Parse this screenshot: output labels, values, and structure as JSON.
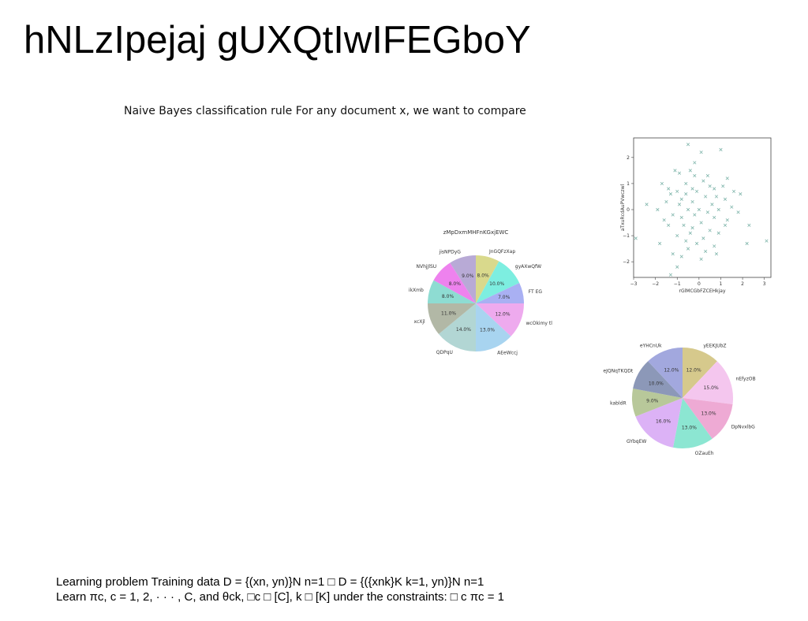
{
  "slide": {
    "title": "hNLzIpejaj gUXQtIwIFEGboY",
    "subtitle": "Naive Bayes classification rule For any document x, we want to compare",
    "bottom_lines": [
      "Learning problem Training data D = {(xn, yn)}N n=1 □ D = {({xnk}K k=1, yn)}N n=1",
      "Learn πc, c = 1, 2, · · · , C, and θck, □c □ [C], k □ [K] under the constraints: □ c πc = 1"
    ]
  },
  "chart_data": [
    {
      "type": "pie",
      "title": "zMpDxmMHFnKGxjEWC",
      "labels": [
        "JnGQFzXap",
        "gyAXwQfW",
        "FT EG",
        "wcOkimy tl",
        "AEeWccj",
        "QDPqU",
        "xcXjl",
        "ikXmb",
        "NVhjJlSU",
        "jisNPDyG"
      ],
      "values": [
        8.0,
        10.0,
        7.0,
        12.0,
        13.0,
        14.0,
        11.0,
        8.0,
        8.0,
        9.0
      ],
      "colors": [
        "#d9d98c",
        "#7deee0",
        "#a9b0f3",
        "#eeaaee",
        "#a8d4f0",
        "#b2d6d4",
        "#b2b8a6",
        "#8edcd2",
        "#ee82ee",
        "#b8aad6"
      ]
    },
    {
      "type": "scatter",
      "xlabel": "rGlMCGbFZCEHkjay",
      "ylabel": "aTxuRcdAuPVwczwl",
      "xlim": [
        -3,
        3.3
      ],
      "ylim": [
        -2.6,
        2.75
      ],
      "xticks": [
        -3,
        -2,
        -1,
        0,
        1,
        2,
        3
      ],
      "yticks": [
        -2,
        -1,
        0,
        1,
        2
      ],
      "marker": "x",
      "color": "#7fb5ab",
      "points": [
        [
          -0.5,
          2.5
        ],
        [
          1.0,
          2.3
        ],
        [
          0.1,
          2.2
        ],
        [
          -0.2,
          1.8
        ],
        [
          -1.1,
          1.5
        ],
        [
          -0.4,
          1.5
        ],
        [
          -0.9,
          1.4
        ],
        [
          0.4,
          1.3
        ],
        [
          -0.2,
          1.3
        ],
        [
          1.3,
          1.2
        ],
        [
          0.2,
          1.1
        ],
        [
          -1.7,
          1.0
        ],
        [
          -0.6,
          1.0
        ],
        [
          0.5,
          0.9
        ],
        [
          -1.4,
          0.8
        ],
        [
          -0.3,
          0.8
        ],
        [
          0.7,
          0.8
        ],
        [
          1.1,
          0.9
        ],
        [
          -1.0,
          0.7
        ],
        [
          -0.1,
          0.7
        ],
        [
          1.6,
          0.7
        ],
        [
          1.9,
          0.6
        ],
        [
          -1.3,
          0.6
        ],
        [
          -0.6,
          0.6
        ],
        [
          0.3,
          0.5
        ],
        [
          0.8,
          0.5
        ],
        [
          -0.8,
          0.4
        ],
        [
          1.2,
          0.4
        ],
        [
          -1.5,
          0.3
        ],
        [
          -0.3,
          0.3
        ],
        [
          -2.4,
          0.2
        ],
        [
          -0.9,
          0.2
        ],
        [
          0.6,
          0.2
        ],
        [
          1.5,
          0.1
        ],
        [
          -1.9,
          0.0
        ],
        [
          -0.5,
          0.0
        ],
        [
          0.0,
          0.0
        ],
        [
          0.9,
          0.0
        ],
        [
          -1.2,
          -0.2
        ],
        [
          0.4,
          -0.1
        ],
        [
          1.8,
          -0.1
        ],
        [
          -0.8,
          -0.3
        ],
        [
          -0.2,
          -0.2
        ],
        [
          0.7,
          -0.3
        ],
        [
          -1.6,
          -0.4
        ],
        [
          1.3,
          -0.4
        ],
        [
          0.1,
          -0.5
        ],
        [
          -0.7,
          -0.6
        ],
        [
          -1.4,
          -0.6
        ],
        [
          1.2,
          -0.6
        ],
        [
          -0.3,
          -0.7
        ],
        [
          0.5,
          -0.8
        ],
        [
          2.3,
          -0.6
        ],
        [
          -0.4,
          -0.9
        ],
        [
          0.9,
          -0.9
        ],
        [
          -1.0,
          -1.0
        ],
        [
          0.2,
          -1.1
        ],
        [
          -0.6,
          -1.2
        ],
        [
          -2.9,
          -1.1
        ],
        [
          3.1,
          -1.2
        ],
        [
          -0.1,
          -1.3
        ],
        [
          -1.8,
          -1.3
        ],
        [
          0.7,
          -1.4
        ],
        [
          2.2,
          -1.3
        ],
        [
          -0.5,
          -1.5
        ],
        [
          0.3,
          -1.6
        ],
        [
          -1.2,
          -1.7
        ],
        [
          -0.8,
          -1.8
        ],
        [
          0.1,
          -1.9
        ],
        [
          -1.0,
          -2.2
        ],
        [
          -1.3,
          -2.5
        ],
        [
          0.8,
          -1.7
        ]
      ]
    },
    {
      "type": "pie",
      "labels": [
        "yEEKJUbZ",
        "nEfyzOB",
        "DpNvxlbG",
        "OZauEh",
        "GYbqEW",
        "kabldR",
        "eJQNqTKQDt",
        "eYHCnUk"
      ],
      "values": [
        12.0,
        15.0,
        13.0,
        13.0,
        16.0,
        9.0,
        10.0,
        12.0
      ],
      "colors": [
        "#d6c98c",
        "#f4c6ee",
        "#eeaad4",
        "#8ce6d2",
        "#dcb2f6",
        "#b8c89a",
        "#8c98b8",
        "#a2a8de"
      ]
    }
  ]
}
